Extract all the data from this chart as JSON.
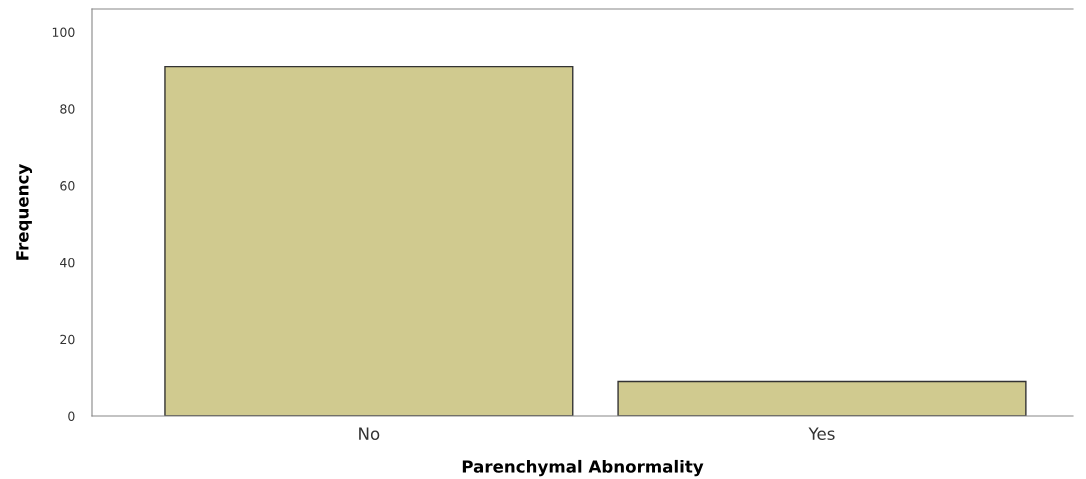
{
  "chart_data": {
    "type": "bar",
    "xlabel": "Parenchymal Abnormality",
    "ylabel": "Frequency",
    "categories": [
      "No",
      "Yes"
    ],
    "values": [
      91,
      9
    ],
    "color": "#d0ca8f",
    "ylim": [
      0,
      106
    ],
    "yticks": [
      0,
      20,
      40,
      60,
      80,
      100
    ],
    "grid": false
  }
}
